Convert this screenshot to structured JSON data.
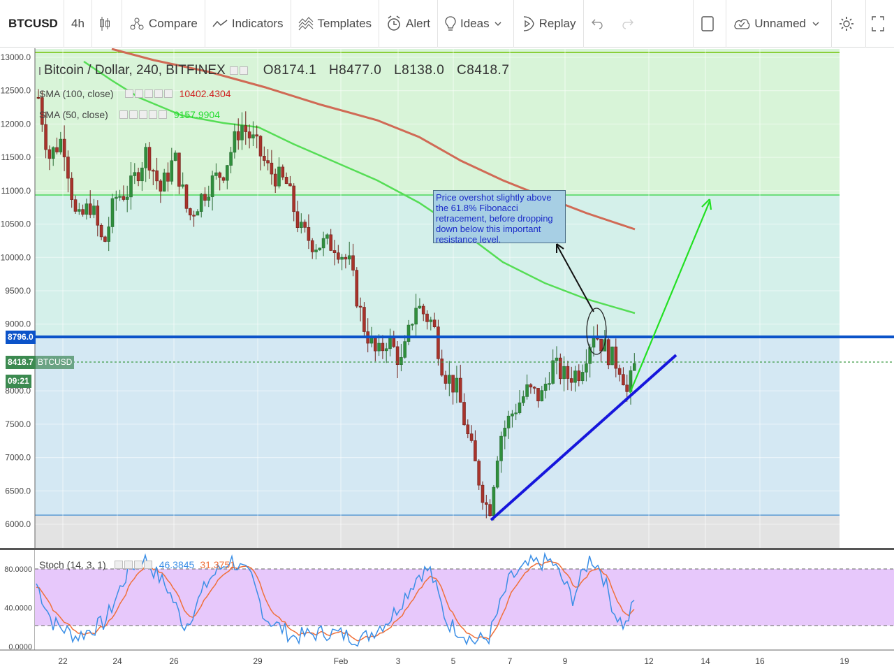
{
  "toolbar": {
    "symbol": "BTCUSD",
    "interval": "4h",
    "compare": "Compare",
    "indicators": "Indicators",
    "templates": "Templates",
    "alert": "Alert",
    "ideas": "Ideas",
    "replay": "Replay",
    "layout_name": "Unnamed"
  },
  "legend": {
    "title": "Bitcoin / Dollar, 240, BITFINEX",
    "open": "O8174.1",
    "high": "H8477.0",
    "low": "L8138.0",
    "close": "C8418.7",
    "sma100_label": "SMA (100, close)",
    "sma100_value": "10402.4304",
    "sma50_label": "SMA (50, close)",
    "sma50_value": "9157.9904",
    "stoch_label": "Stoch (14, 3, 1)",
    "stoch_k": "46.3845",
    "stoch_d": "31.3751"
  },
  "annotation": {
    "text": "Price overshot slightly above the 61.8% Fibonacci retracement, before dropping down below this important resistance level."
  },
  "price_axis": {
    "labels": [
      "13000.0",
      "12500.0",
      "12000.0",
      "11500.0",
      "11000.0",
      "10500.0",
      "10000.0",
      "9500.0",
      "9000.0",
      "8000.0",
      "7500.0",
      "7000.0",
      "6500.0",
      "6000.0"
    ],
    "resistance_tag": "8796.0",
    "last_price_tag": "8418.7",
    "symbol_tag": "BTCUSD",
    "countdown_tag": "09:21"
  },
  "stoch_axis": {
    "labels": [
      "80.0000",
      "40.0000",
      "0.0000"
    ]
  },
  "time_axis": {
    "labels": [
      "22",
      "24",
      "26",
      "29",
      "Feb",
      "3",
      "5",
      "7",
      "9",
      "12",
      "14",
      "16",
      "19"
    ]
  },
  "colors": {
    "resistance_line": "#0b53c9",
    "trend_line": "#1616dc",
    "projection_arrow": "#22e022",
    "sma100": "#d06a55",
    "sma50": "#55dd55",
    "stoch_k": "#3a8ee6",
    "stoch_d": "#f0703a",
    "up_candle": "#2f8f3c",
    "down_candle": "#a8332b",
    "fib_green": "#d8f4d8",
    "fib_cyan": "#d4f0ea",
    "fib_blue": "#d4e8f3",
    "stoch_band": "#e7c8fb"
  },
  "chart_data": {
    "type": "candlestick",
    "symbol": "BTCUSD",
    "timeframe": "240",
    "exchange": "BITFINEX",
    "ylim": [
      5700,
      13100
    ],
    "fib_levels": [
      13000,
      10930,
      8796,
      6130
    ],
    "resistance": 8796.0,
    "last_price": 8418.7,
    "trendline": [
      [
        6030,
        "Feb 6"
      ],
      [
        8800,
        "Feb 13"
      ]
    ],
    "sma100_end": 10402.4304,
    "sma50_end": 9157.9904,
    "stoch": {
      "k_last": 46.3845,
      "d_last": 31.3751,
      "bands": [
        80,
        20
      ]
    }
  }
}
